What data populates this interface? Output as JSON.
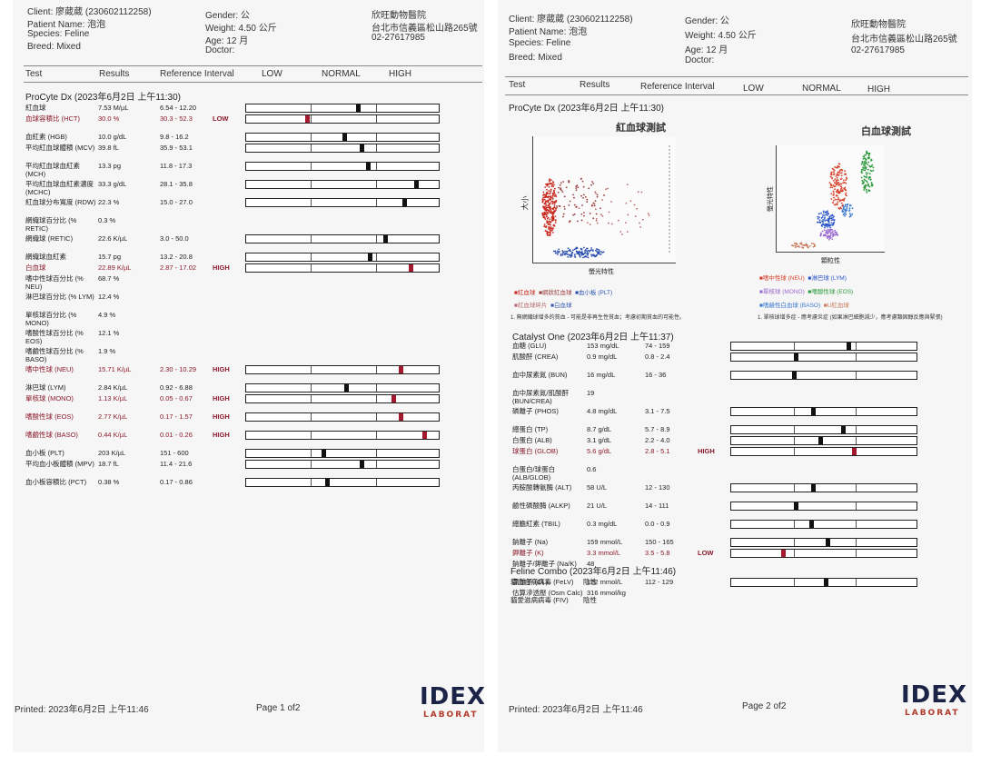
{
  "pages": [
    {
      "header": {
        "client": "Client: 廖葳葳 (230602112258)",
        "patient": "Patient Name: 泡泡",
        "species": "Species: Feline",
        "breed": "Breed: Mixed",
        "gender": "Gender: 公",
        "weight": "Weight: 4.50 公斤",
        "age": "Age: 12 月",
        "doctor": "Doctor:",
        "clinic": "欣旺動物醫院",
        "address": "台北市信義區松山路265號",
        "phone": "02-27617985"
      },
      "columns": {
        "test": "Test",
        "results": "Results",
        "reference": "Reference Interval",
        "low": "LOW",
        "normal": "NORMAL",
        "high": "HIGH"
      },
      "footer": {
        "printed": "Printed: 2023年6月2日 上午11:46",
        "page": "Page 1 of2",
        "logo_top": "IDEX",
        "logo_bottom": "LABORAT"
      }
    },
    {
      "header": {
        "client": "Client: 廖葳葳 (230602112258)",
        "patient": "Patient Name: 泡泡",
        "species": "Species: Feline",
        "breed": "Breed: Mixed",
        "gender": "Gender: 公",
        "weight": "Weight: 4.50 公斤",
        "age": "Age: 12 月",
        "doctor": "Doctor:",
        "clinic": "欣旺動物醫院",
        "address": "台北市信義區松山路265號",
        "phone": "02-27617985"
      },
      "columns": {
        "test": "Test",
        "results": "Results",
        "reference": "Reference Interval",
        "low": "LOW",
        "normal": "NORMAL",
        "high": "HIGH"
      },
      "footer": {
        "printed": "Printed: 2023年6月2日 上午11:46",
        "page": "Page 2 of2",
        "logo_top": "IDEX",
        "logo_bottom": "LABORAT"
      }
    }
  ],
  "procyte": {
    "title": "ProCyte Dx (2023年6月2日 上午11:30)",
    "rows": [
      {
        "name": "紅血球",
        "result": "7.53 M/µL",
        "ref": "6.54 - 12.20",
        "flag": "",
        "marker": 0.58,
        "abnormal": false
      },
      {
        "name": "血球容積比 (HCT)",
        "result": "30.0 %",
        "ref": "30.3 - 52.3",
        "flag": "LOW",
        "marker": 0.32,
        "abnormal": true
      },
      {
        "name": "血紅素 (HGB)",
        "result": "10.0 g/dL",
        "ref": "9.8 - 16.2",
        "flag": "",
        "marker": 0.51,
        "abnormal": false
      },
      {
        "name": "平均紅血球體積 (MCV)",
        "result": "39.8 fL",
        "ref": "35.9 - 53.1",
        "flag": "",
        "marker": 0.6,
        "abnormal": false
      },
      {
        "name": "平均紅血球血紅素 (MCH)",
        "result": "13.3 pg",
        "ref": "11.8 - 17.3",
        "flag": "",
        "marker": 0.63,
        "abnormal": false
      },
      {
        "name": "平均紅血球血紅素濃度 (MCHC)",
        "result": "33.3 g/dL",
        "ref": "28.1 - 35.8",
        "flag": "",
        "marker": 0.88,
        "abnormal": false
      },
      {
        "name": "紅血球分布寬度 (RDW)",
        "result": "22.3 %",
        "ref": "15.0 - 27.0",
        "flag": "",
        "marker": 0.82,
        "abnormal": false
      },
      {
        "name": "網織球百分比 (% RETIC)",
        "result": "0.3 %",
        "ref": "",
        "flag": "",
        "marker": null,
        "abnormal": false
      },
      {
        "name": "網織球 (RETIC)",
        "result": "22.6 K/µL",
        "ref": "3.0 - 50.0",
        "flag": "",
        "marker": 0.72,
        "abnormal": false
      },
      {
        "name": "網織球血紅素",
        "result": "15.7 pg",
        "ref": "13.2 - 20.8",
        "flag": "",
        "marker": 0.64,
        "abnormal": false
      },
      {
        "name": "白血球",
        "result": "22.89 K/µL",
        "ref": "2.87 - 17.02",
        "flag": "HIGH",
        "marker": 0.85,
        "abnormal": true
      },
      {
        "name": "嗜中性球百分比 (% NEU)",
        "result": "68.7 %",
        "ref": "",
        "flag": "",
        "marker": null,
        "abnormal": false
      },
      {
        "name": "淋巴球百分比 (% LYM)",
        "result": "12.4 %",
        "ref": "",
        "flag": "",
        "marker": null,
        "abnormal": false
      },
      {
        "name": "單核球百分比 (% MONO)",
        "result": "4.9 %",
        "ref": "",
        "flag": "",
        "marker": null,
        "abnormal": false
      },
      {
        "name": "嗜酸性球百分比 (% EOS)",
        "result": "12.1 %",
        "ref": "",
        "flag": "",
        "marker": null,
        "abnormal": false
      },
      {
        "name": "嗜鹼性球百分比 (% BASO)",
        "result": "1.9 %",
        "ref": "",
        "flag": "",
        "marker": null,
        "abnormal": false
      },
      {
        "name": "嗜中性球 (NEU)",
        "result": "15.71 K/µL",
        "ref": "2.30 - 10.29",
        "flag": "HIGH",
        "marker": 0.8,
        "abnormal": true
      },
      {
        "name": "淋巴球 (LYM)",
        "result": "2.84 K/µL",
        "ref": "0.92 - 6.88",
        "flag": "",
        "marker": 0.52,
        "abnormal": false
      },
      {
        "name": "單核球 (MONO)",
        "result": "1.13 K/µL",
        "ref": "0.05 - 0.67",
        "flag": "HIGH",
        "marker": 0.76,
        "abnormal": true
      },
      {
        "name": "嗜酸性球 (EOS)",
        "result": "2.77 K/µL",
        "ref": "0.17 - 1.57",
        "flag": "HIGH",
        "marker": 0.8,
        "abnormal": true
      },
      {
        "name": "嗜鹼性球 (BASO)",
        "result": "0.44 K/µL",
        "ref": "0.01 - 0.26",
        "flag": "HIGH",
        "marker": 0.92,
        "abnormal": true
      },
      {
        "name": "血小板 (PLT)",
        "result": "203 K/µL",
        "ref": "151 - 600",
        "flag": "",
        "marker": 0.4,
        "abnormal": false
      },
      {
        "name": "平均血小板體積 (MPV)",
        "result": "18.7 fL",
        "ref": "11.4 - 21.6",
        "flag": "",
        "marker": 0.6,
        "abnormal": false
      },
      {
        "name": "血小板容積比 (PCT)",
        "result": "0.38 %",
        "ref": "0.17 - 0.86",
        "flag": "",
        "marker": 0.42,
        "abnormal": false
      }
    ]
  },
  "scatter": {
    "rbc_title": "紅血球測試",
    "wbc_title": "白血球測試",
    "rbc_ylabel": "大小",
    "rbc_xlabel": "螢光特性",
    "wbc_ylabel": "螢光特性",
    "wbc_xlabel": "顆粒性",
    "rbc_legend": [
      "■紅血球",
      "■網狀紅血球",
      "■血小板 (PLT)",
      "■紅血球碎片",
      "■白血球"
    ],
    "wbc_legend": [
      "■嗜中性球 (NEU)",
      "■淋巴球 (LYM)",
      "■單核球 (MONO)",
      "■嗜酸性球 (EOS)",
      "■嗜鹼性白血球 (BASO)",
      "■U紅血球"
    ],
    "rbc_note": "1. 無網織球增多的貧血 - 可能是非再生性貧血；考慮初期貧血的可能性。",
    "wbc_note": "1. 單核球增多症 - 應考慮炎症 (如果淋巴細胞減少，應考慮類固醇反應與緊張)"
  },
  "catalyst": {
    "title": "Catalyst One (2023年6月2日 上午11:37)",
    "rows": [
      {
        "name": "血糖 (GLU)",
        "result": "153 mg/dL",
        "ref": "74 - 159",
        "flag": "",
        "marker": 0.63,
        "abnormal": false
      },
      {
        "name": "肌酸酐 (CREA)",
        "result": "0.9 mg/dL",
        "ref": "0.8 - 2.4",
        "flag": "",
        "marker": 0.35,
        "abnormal": false
      },
      {
        "name": "血中尿素氮 (BUN)",
        "result": "16 mg/dL",
        "ref": "16 - 36",
        "flag": "",
        "marker": 0.34,
        "abnormal": false
      },
      {
        "name": "血中尿素氮/肌酸酐 (BUN/CREA)",
        "result": "19",
        "ref": "",
        "flag": "",
        "marker": null,
        "abnormal": false
      },
      {
        "name": "磷離子 (PHOS)",
        "result": "4.8 mg/dL",
        "ref": "3.1 - 7.5",
        "flag": "",
        "marker": 0.44,
        "abnormal": false
      },
      {
        "name": "總蛋白 (TP)",
        "result": "8.7 g/dL",
        "ref": "5.7 - 8.9",
        "flag": "",
        "marker": 0.6,
        "abnormal": false
      },
      {
        "name": "白蛋白 (ALB)",
        "result": "3.1 g/dL",
        "ref": "2.2 - 4.0",
        "flag": "",
        "marker": 0.48,
        "abnormal": false
      },
      {
        "name": "球蛋白 (GLOB)",
        "result": "5.6 g/dL",
        "ref": "2.8 - 5.1",
        "flag": "HIGH",
        "marker": 0.66,
        "abnormal": true
      },
      {
        "name": "白蛋白/球蛋白 (ALB/GLOB)",
        "result": "0.6",
        "ref": "",
        "flag": "",
        "marker": null,
        "abnormal": false
      },
      {
        "name": "丙胺酸轉氨酶 (ALT)",
        "result": "58 U/L",
        "ref": "12 - 130",
        "flag": "",
        "marker": 0.44,
        "abnormal": false
      },
      {
        "name": "鹼性磷酸酶 (ALKP)",
        "result": "21 U/L",
        "ref": "14 - 111",
        "flag": "",
        "marker": 0.35,
        "abnormal": false
      },
      {
        "name": "總膽紅素 (TBIL)",
        "result": "0.3 mg/dL",
        "ref": "0.0 - 0.9",
        "flag": "",
        "marker": 0.43,
        "abnormal": false
      },
      {
        "name": "鈉離子 (Na)",
        "result": "159 mmol/L",
        "ref": "150 - 165",
        "flag": "",
        "marker": 0.52,
        "abnormal": false
      },
      {
        "name": "鉀離子 (K)",
        "result": "3.3 mmol/L",
        "ref": "3.5 - 5.8",
        "flag": "LOW",
        "marker": 0.28,
        "abnormal": true
      },
      {
        "name": "鈉離子/鉀離子 (Na/K)",
        "result": "48",
        "ref": "",
        "flag": "",
        "marker": null,
        "abnormal": false
      },
      {
        "name": "氯離子 (CL)",
        "result": "122 mmol/L",
        "ref": "112 - 129",
        "flag": "",
        "marker": 0.51,
        "abnormal": false
      },
      {
        "name": "估算滲透壓 (Osm Calc)",
        "result": "316 mmol/kg",
        "ref": "",
        "flag": "",
        "marker": null,
        "abnormal": false
      }
    ]
  },
  "combo": {
    "title": "Feline Combo (2023年6月2日 上午11:46)",
    "rows": [
      {
        "name": "貓白血病病毒 (FeLV)",
        "result": "陰性"
      },
      {
        "name": "貓愛滋病病毒 (FIV)",
        "result": "陰性"
      }
    ]
  },
  "colors": {
    "abnormal": "#8b1a2b",
    "rbc": "#c8281e",
    "reticulocyte": "#9a3a3a",
    "plt": "#2a4fb0",
    "neu": "#d7402a",
    "lym": "#2a56c8",
    "mono": "#9b6ad0",
    "eos": "#2e9a3e",
    "baso": "#3a7ad0"
  }
}
